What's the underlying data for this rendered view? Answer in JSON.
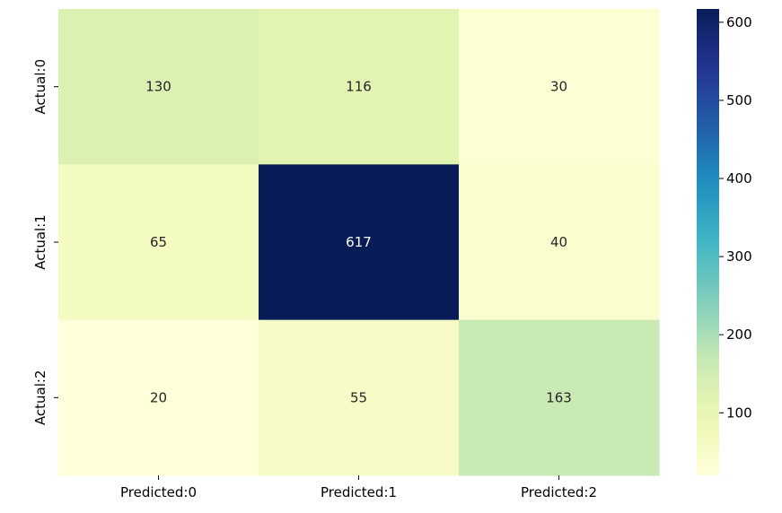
{
  "chart_data": {
    "type": "heatmap",
    "x_categories": [
      "Predicted:0",
      "Predicted:1",
      "Predicted:2"
    ],
    "y_categories": [
      "Actual:0",
      "Actual:1",
      "Actual:2"
    ],
    "values": [
      [
        130,
        116,
        30
      ],
      [
        65,
        617,
        40
      ],
      [
        20,
        55,
        163
      ]
    ],
    "colorscale": "YlGnBu",
    "colorbar": {
      "range": [
        20,
        617
      ],
      "ticks": [
        100,
        200,
        300,
        400,
        500,
        600
      ]
    }
  }
}
